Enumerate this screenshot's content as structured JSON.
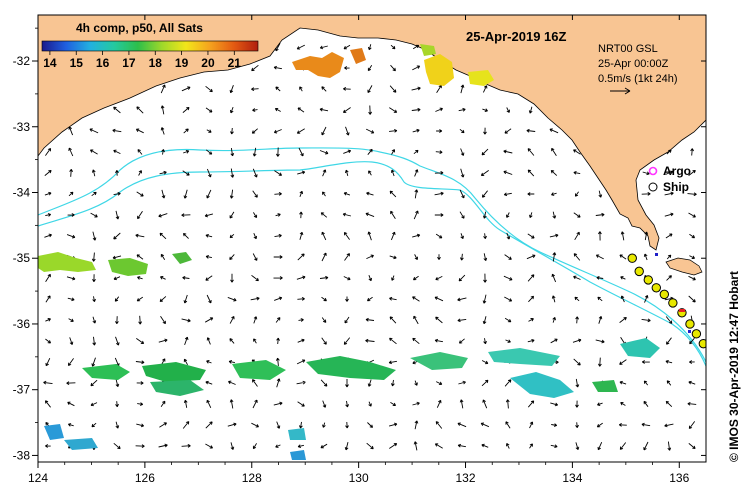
{
  "title": "25-Apr-2019 16Z",
  "colorbar": {
    "label": "4h comp, p50, All Sats",
    "ticks": [
      "14",
      "15",
      "16",
      "17",
      "18",
      "19",
      "20",
      "21"
    ],
    "tick_values": [
      14,
      15,
      16,
      17,
      18,
      19,
      20,
      21
    ],
    "range": [
      13.7,
      21.9
    ],
    "stops": [
      "#1a1a8c",
      "#1f5fe0",
      "#22b0e0",
      "#25c9a0",
      "#2dbf4a",
      "#9fd82a",
      "#f2e61a",
      "#f5a21e",
      "#e35a12",
      "#b01e0e"
    ]
  },
  "info": {
    "line1": "NRT00 GSL",
    "line2": "25-Apr 00:00Z",
    "line3": "0.5m/s (1kt 24h)"
  },
  "legend": {
    "argo": "Argo",
    "ship": "Ship",
    "argo_color": "#ff33ff",
    "ship_color": "#e8e800"
  },
  "axes": {
    "x_ticks": [
      "124",
      "126",
      "128",
      "130",
      "132",
      "134",
      "136"
    ],
    "x_values": [
      124,
      126,
      128,
      130,
      132,
      134,
      136
    ],
    "y_ticks": [
      "-32",
      "-33",
      "-34",
      "-35",
      "-36",
      "-37",
      "-38"
    ],
    "y_values": [
      -32,
      -33,
      -34,
      -35,
      -36,
      -37,
      -38
    ],
    "lon_range": [
      124,
      136.5
    ],
    "lat_range": [
      -31.3,
      -38.1
    ]
  },
  "credit": "© IMOS 30-Apr-2019 12:47 Hobart",
  "colors": {
    "land": "#f8c593",
    "isobath": "#3fd7e6",
    "arrow": "#000000"
  },
  "ship_positions": [
    [
      135.12,
      -35.0
    ],
    [
      135.25,
      -35.2
    ],
    [
      135.42,
      -35.33
    ],
    [
      135.57,
      -35.45
    ],
    [
      135.72,
      -35.55
    ],
    [
      135.88,
      -35.68
    ],
    [
      136.05,
      -35.83
    ],
    [
      136.2,
      -36.0
    ],
    [
      136.32,
      -36.15
    ],
    [
      136.45,
      -36.3
    ]
  ]
}
